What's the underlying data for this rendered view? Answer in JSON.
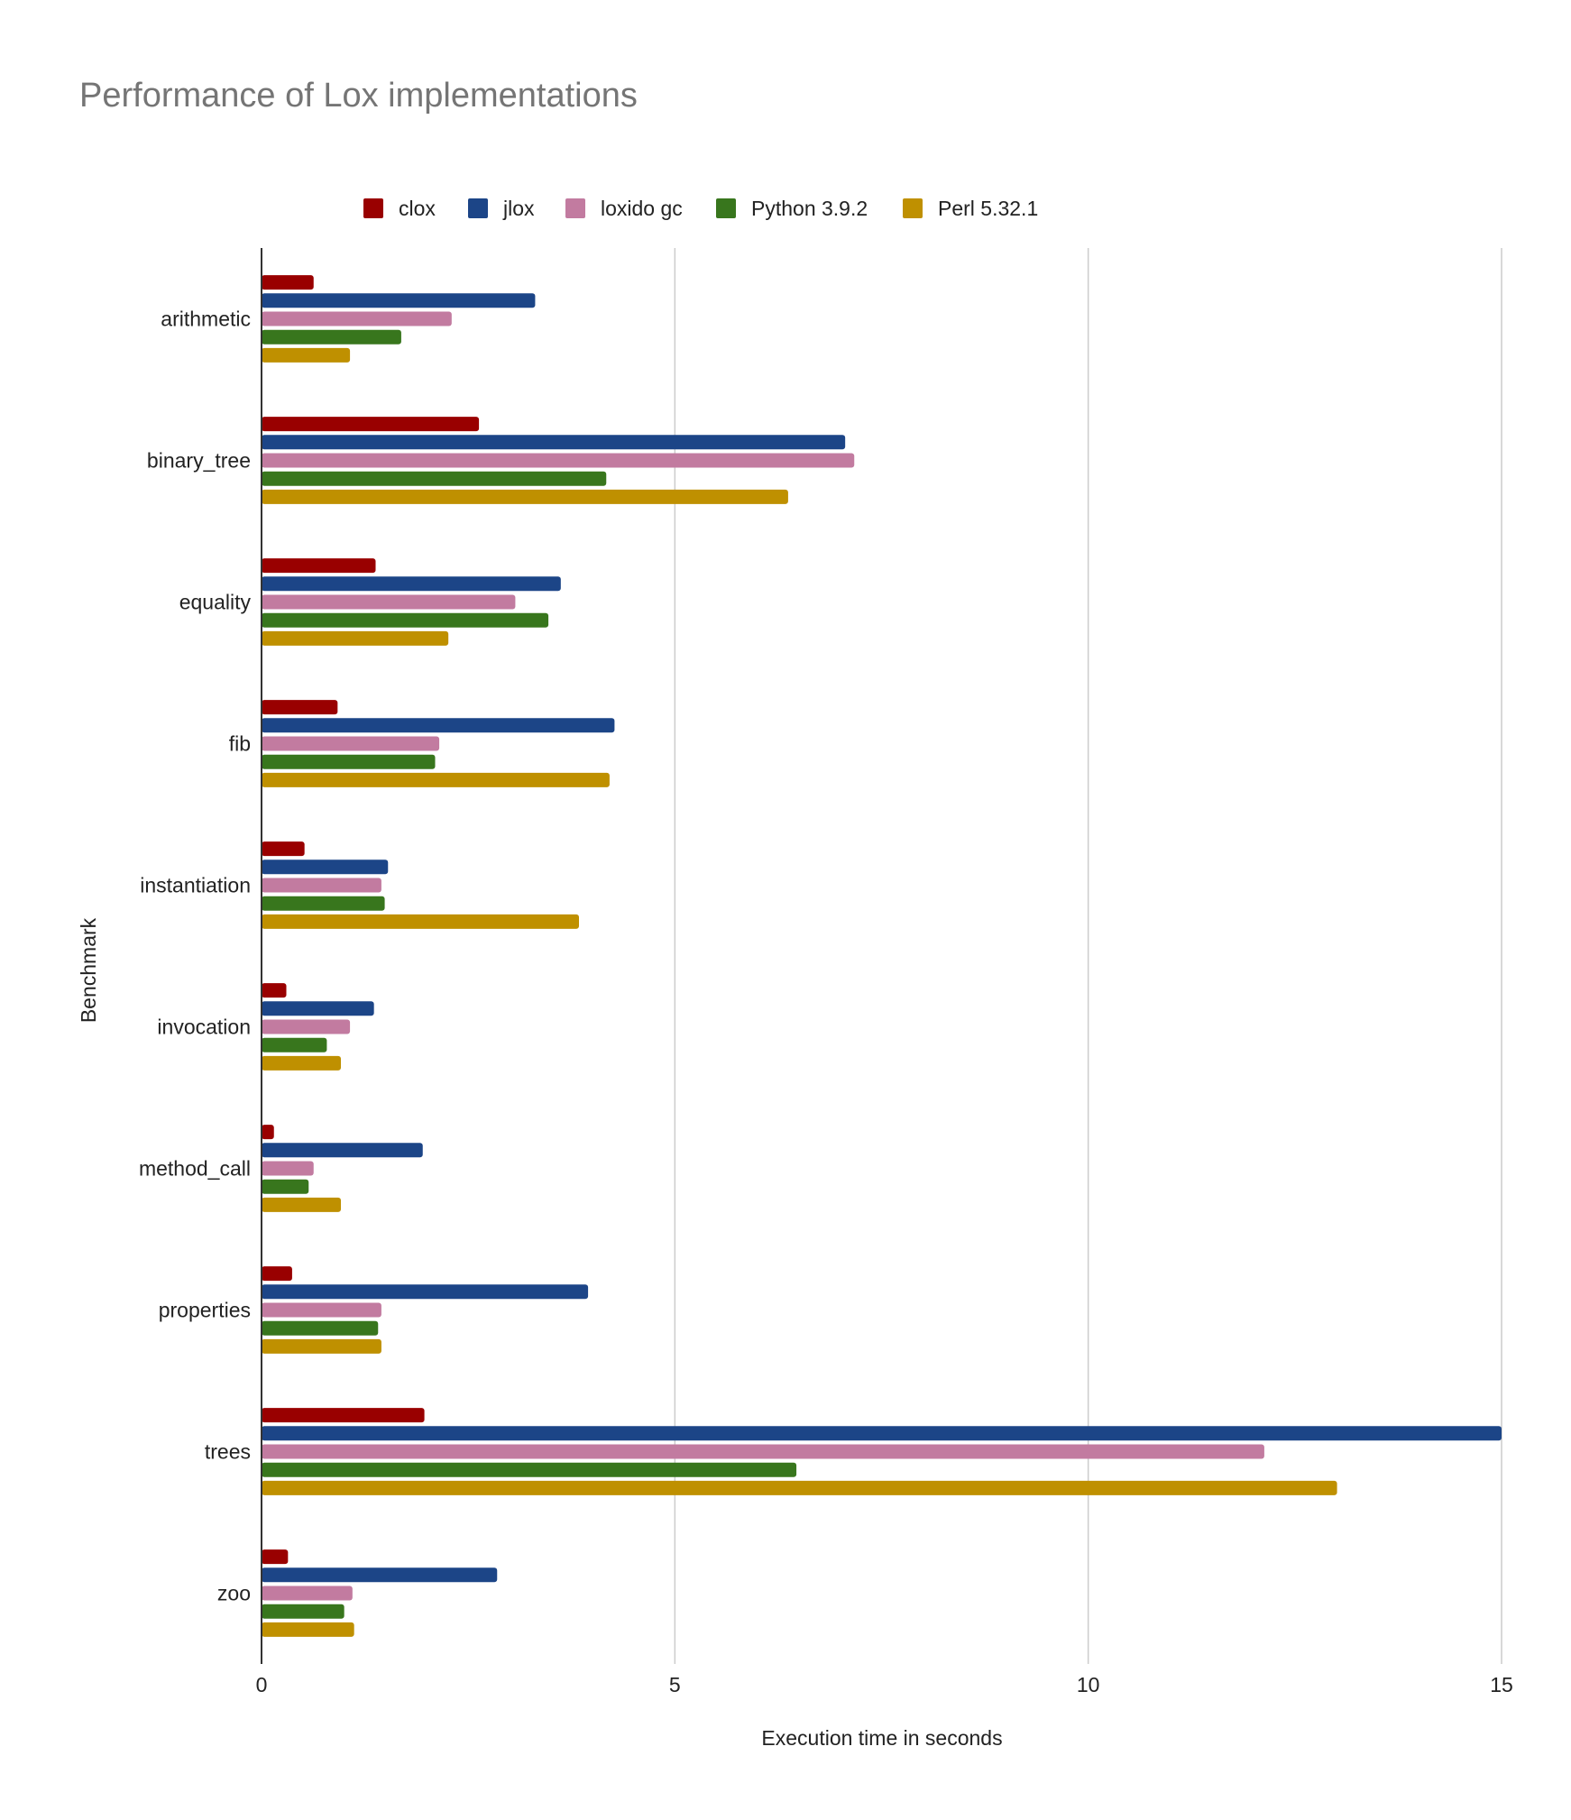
{
  "chart_data": {
    "type": "bar",
    "orientation": "horizontal",
    "title": "Performance of Lox implementations",
    "xlabel": "Execution time in seconds",
    "ylabel": "Benchmark",
    "xlim": [
      0,
      15
    ],
    "xticks": [
      0,
      5,
      10,
      15
    ],
    "grid": true,
    "legend_position": "top",
    "categories": [
      "arithmetic",
      "binary_tree",
      "equality",
      "fib",
      "instantiation",
      "invocation",
      "method_call",
      "properties",
      "trees",
      "zoo"
    ],
    "series": [
      {
        "name": "clox",
        "color": "#990000",
        "values": [
          0.63,
          2.63,
          1.38,
          0.92,
          0.52,
          0.3,
          0.15,
          0.37,
          1.97,
          0.32
        ]
      },
      {
        "name": "jlox",
        "color": "#1c4587",
        "values": [
          3.31,
          7.06,
          3.62,
          4.27,
          1.53,
          1.36,
          1.95,
          3.95,
          15.0,
          2.85
        ]
      },
      {
        "name": "loxido gc",
        "color": "#c27ba0",
        "values": [
          2.3,
          7.17,
          3.07,
          2.15,
          1.45,
          1.07,
          0.63,
          1.45,
          12.13,
          1.1
        ]
      },
      {
        "name": "Python 3.9.2",
        "color": "#38761d",
        "values": [
          1.69,
          4.17,
          3.47,
          2.1,
          1.49,
          0.79,
          0.57,
          1.41,
          6.47,
          1.0
        ]
      },
      {
        "name": "Perl 5.32.1",
        "color": "#bf9000",
        "values": [
          1.07,
          6.37,
          2.26,
          4.21,
          3.84,
          0.96,
          0.96,
          1.45,
          13.01,
          1.12
        ]
      }
    ]
  }
}
